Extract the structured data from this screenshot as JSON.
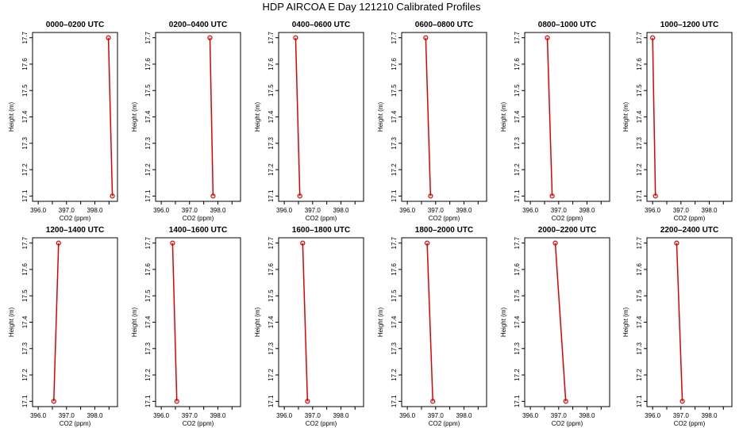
{
  "figure": {
    "title": "HDP AIRCOA E  Day 121210  Calibrated Profiles"
  },
  "chart_data": {
    "type": "line",
    "layout": "2 rows x 6 columns of small multiples",
    "xlabel": "CO2 (ppm)",
    "ylabel": "Height (m)",
    "xlim": [
      395.8,
      398.8
    ],
    "ylim": [
      17.08,
      17.72
    ],
    "xticks": [
      "396.0",
      "397.0",
      "398.0"
    ],
    "yticks": [
      "17.1",
      "17.2",
      "17.3",
      "17.4",
      "17.5",
      "17.6",
      "17.7"
    ],
    "grid": false,
    "marker": "open-circle",
    "line_color": "#dd0000",
    "panels": [
      {
        "title": "0000–0200 UTC",
        "x": [
          398.62,
          398.48
        ],
        "y": [
          17.1,
          17.7
        ]
      },
      {
        "title": "0200–0400 UTC",
        "x": [
          397.83,
          397.72
        ],
        "y": [
          17.1,
          17.7
        ]
      },
      {
        "title": "0400–0600 UTC",
        "x": [
          396.55,
          396.4
        ],
        "y": [
          17.1,
          17.7
        ]
      },
      {
        "title": "0600–0800 UTC",
        "x": [
          396.82,
          396.65
        ],
        "y": [
          17.1,
          17.7
        ]
      },
      {
        "title": "0800–1000 UTC",
        "x": [
          396.77,
          396.6
        ],
        "y": [
          17.1,
          17.7
        ]
      },
      {
        "title": "1000–1200 UTC",
        "x": [
          396.1,
          396.0
        ],
        "y": [
          17.1,
          17.7
        ]
      },
      {
        "title": "1200–1400 UTC",
        "x": [
          396.55,
          396.72
        ],
        "y": [
          17.1,
          17.7
        ]
      },
      {
        "title": "1400–1600 UTC",
        "x": [
          396.55,
          396.4
        ],
        "y": [
          17.1,
          17.7
        ]
      },
      {
        "title": "1600–1800 UTC",
        "x": [
          396.82,
          396.65
        ],
        "y": [
          17.1,
          17.7
        ]
      },
      {
        "title": "1800–2000 UTC",
        "x": [
          396.9,
          396.7
        ],
        "y": [
          17.1,
          17.7
        ]
      },
      {
        "title": "2000–2200 UTC",
        "x": [
          397.25,
          396.88
        ],
        "y": [
          17.1,
          17.7
        ]
      },
      {
        "title": "2200–2400 UTC",
        "x": [
          397.05,
          396.85
        ],
        "y": [
          17.1,
          17.7
        ]
      }
    ]
  }
}
